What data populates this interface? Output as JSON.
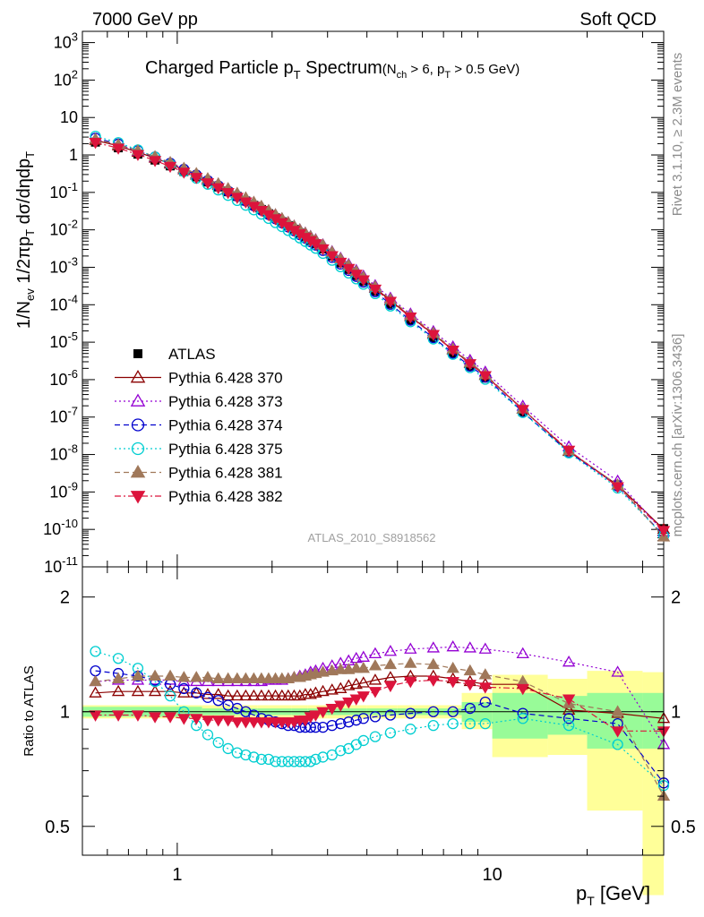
{
  "header": {
    "left": "7000 GeV pp",
    "right": "Soft QCD"
  },
  "side_labels": {
    "top": "Rivet 3.1.10, ≥ 2.3M events",
    "bottom": "mcplots.cern.ch [arXiv:1306.3436]"
  },
  "colors": {
    "ATLAS": "#000000",
    "370": "#8b0000",
    "373": "#9400d3",
    "374": "#0000cd",
    "375": "#00ced1",
    "381": "#a0785a",
    "382": "#dc143c",
    "band_green": "#98fb98",
    "band_yellow": "#ffff99"
  },
  "chart_data": [
    {
      "type": "line",
      "title": "Charged Particle p_T Spectrum",
      "title_parts": {
        "main": "Charged Particle p",
        "main_sub": "T",
        "main_tail": " Spectrum",
        "cut_1": "(N",
        "cut_1_sub": "ch",
        "cut_2": " > 6, p",
        "cut_2_sub": "T",
        "cut_3": " > 0.5 GeV)"
      },
      "xlabel": "p_T [GeV]",
      "ylabel": "1/N_ev 1/2πp_T dσ/dηdp_T",
      "x_scale": "log",
      "y_scale": "log",
      "xlim": [
        0.5,
        35
      ],
      "ylim": [
        1e-11,
        2000
      ],
      "ytick_labels": [
        "10^-11",
        "10^-10",
        "10^-9",
        "10^-8",
        "10^-7",
        "10^-6",
        "10^-5",
        "10^-4",
        "10^-3",
        "10^-2",
        "10^-1",
        "1",
        "10",
        "10^2",
        "10^3"
      ],
      "xtick_labels": [
        "1",
        "10"
      ],
      "watermark": "ATLAS_2010_S8918562",
      "x": [
        0.55,
        0.65,
        0.75,
        0.85,
        0.95,
        1.05,
        1.15,
        1.25,
        1.35,
        1.45,
        1.55,
        1.65,
        1.75,
        1.85,
        1.95,
        2.05,
        2.15,
        2.25,
        2.35,
        2.45,
        2.55,
        2.65,
        2.75,
        2.9,
        3.1,
        3.3,
        3.5,
        3.7,
        3.9,
        4.25,
        4.75,
        5.5,
        6.5,
        7.5,
        8.5,
        9.5,
        12.5,
        17.5,
        25,
        35
      ],
      "series": [
        {
          "name": "ATLAS",
          "marker": "square-filled",
          "linestyle": "none",
          "color": "#000000",
          "values": [
            2.2,
            1.55,
            1.05,
            0.73,
            0.51,
            0.36,
            0.26,
            0.19,
            0.14,
            0.104,
            0.078,
            0.059,
            0.045,
            0.035,
            0.027,
            0.021,
            0.0165,
            0.013,
            0.0103,
            0.0082,
            0.0066,
            0.0053,
            0.0043,
            0.0031,
            0.002,
            0.00131,
            0.00088,
            0.0006,
            0.00042,
            0.00023,
            0.000105,
            3.9e-05,
            1.32e-05,
            5.1e-06,
            2.25e-06,
            1.1e-06,
            1.38e-07,
            1.2e-08,
            1.55e-09,
            1.05e-10
          ]
        },
        {
          "name": "Pythia 6.428 370",
          "marker": "triangle-up-open",
          "linestyle": "solid",
          "color": "#8b0000",
          "ratio": [
            1.12,
            1.13,
            1.13,
            1.13,
            1.13,
            1.12,
            1.12,
            1.11,
            1.11,
            1.1,
            1.1,
            1.1,
            1.1,
            1.1,
            1.1,
            1.1,
            1.1,
            1.1,
            1.1,
            1.1,
            1.11,
            1.11,
            1.12,
            1.13,
            1.14,
            1.15,
            1.17,
            1.18,
            1.19,
            1.21,
            1.23,
            1.24,
            1.24,
            1.22,
            1.2,
            1.18,
            1.18,
            1.01,
            0.99,
            0.96
          ]
        },
        {
          "name": "Pythia 6.428 373",
          "marker": "triangle-up-open",
          "linestyle": "dotted",
          "color": "#9400d3",
          "ratio": [
            1.2,
            1.21,
            1.21,
            1.21,
            1.21,
            1.2,
            1.2,
            1.2,
            1.2,
            1.2,
            1.2,
            1.2,
            1.2,
            1.2,
            1.21,
            1.21,
            1.21,
            1.22,
            1.23,
            1.24,
            1.25,
            1.27,
            1.28,
            1.3,
            1.32,
            1.34,
            1.36,
            1.38,
            1.39,
            1.42,
            1.44,
            1.46,
            1.47,
            1.48,
            1.47,
            1.46,
            1.42,
            1.35,
            1.27,
            0.82
          ]
        },
        {
          "name": "Pythia 6.428 374",
          "marker": "circle-open",
          "linestyle": "dashed",
          "color": "#0000cd",
          "ratio": [
            1.28,
            1.26,
            1.24,
            1.21,
            1.18,
            1.15,
            1.12,
            1.09,
            1.07,
            1.04,
            1.02,
            1.0,
            0.98,
            0.96,
            0.95,
            0.94,
            0.93,
            0.92,
            0.92,
            0.91,
            0.91,
            0.91,
            0.91,
            0.91,
            0.92,
            0.93,
            0.94,
            0.95,
            0.96,
            0.97,
            0.98,
            0.99,
            1.0,
            1.0,
            1.02,
            1.06,
            0.99,
            0.96,
            0.93,
            0.65
          ]
        },
        {
          "name": "Pythia 6.428 375",
          "marker": "circle-open",
          "linestyle": "dotted",
          "color": "#00ced1",
          "ratio": [
            1.44,
            1.38,
            1.3,
            1.2,
            1.1,
            1.0,
            0.92,
            0.87,
            0.83,
            0.8,
            0.78,
            0.77,
            0.76,
            0.75,
            0.75,
            0.74,
            0.74,
            0.74,
            0.74,
            0.74,
            0.74,
            0.74,
            0.75,
            0.76,
            0.77,
            0.79,
            0.8,
            0.82,
            0.84,
            0.86,
            0.88,
            0.9,
            0.92,
            0.93,
            0.93,
            0.93,
            0.96,
            0.92,
            0.82,
            0.64
          ]
        },
        {
          "name": "Pythia 6.428 381",
          "marker": "triangle-up-filled",
          "linestyle": "dashed",
          "color": "#a0785a",
          "ratio": [
            1.2,
            1.22,
            1.24,
            1.24,
            1.24,
            1.23,
            1.23,
            1.23,
            1.22,
            1.22,
            1.22,
            1.22,
            1.22,
            1.22,
            1.22,
            1.22,
            1.22,
            1.22,
            1.23,
            1.23,
            1.24,
            1.25,
            1.26,
            1.27,
            1.28,
            1.29,
            1.29,
            1.3,
            1.3,
            1.32,
            1.33,
            1.34,
            1.33,
            1.3,
            1.28,
            1.25,
            1.2,
            1.05,
            1.0,
            0.6
          ]
        },
        {
          "name": "Pythia 6.428 382",
          "marker": "triangle-down-filled",
          "linestyle": "dashdot",
          "color": "#dc143c",
          "ratio": [
            0.98,
            0.98,
            0.98,
            0.97,
            0.97,
            0.96,
            0.96,
            0.95,
            0.95,
            0.95,
            0.94,
            0.94,
            0.94,
            0.94,
            0.94,
            0.94,
            0.94,
            0.94,
            0.94,
            0.95,
            0.95,
            0.97,
            0.98,
            1.0,
            1.02,
            1.04,
            1.06,
            1.08,
            1.1,
            1.13,
            1.17,
            1.2,
            1.21,
            1.2,
            1.18,
            1.16,
            1.15,
            1.08,
            0.89,
            0.89
          ]
        }
      ]
    },
    {
      "type": "line",
      "ylabel": "Ratio to ATLAS",
      "x_scale": "log",
      "y_scale": "log",
      "xlim": [
        0.5,
        35
      ],
      "ylim": [
        0.42,
        2.4
      ],
      "ytick_labels": [
        "0.5",
        "1",
        "2"
      ],
      "band_edges": [
        0.5,
        1.2,
        1.8,
        2.3,
        2.6,
        3.0,
        4.0,
        5.0,
        8.0,
        10.0,
        15.0,
        20.0,
        30.0,
        35.0
      ],
      "band_green": [
        [
          0.97,
          1.03
        ],
        [
          0.98,
          1.02
        ],
        [
          0.98,
          1.02
        ],
        [
          0.98,
          1.02
        ],
        [
          0.98,
          1.02
        ],
        [
          0.98,
          1.02
        ],
        [
          0.98,
          1.02
        ],
        [
          0.98,
          1.02
        ],
        [
          0.94,
          1.06
        ],
        [
          0.85,
          1.12
        ],
        [
          0.87,
          1.1
        ],
        [
          0.8,
          1.12
        ],
        [
          0.8,
          1.12
        ]
      ],
      "band_yellow": [
        [
          0.96,
          1.04
        ],
        [
          0.96,
          1.04
        ],
        [
          0.96,
          1.04
        ],
        [
          0.96,
          1.04
        ],
        [
          0.96,
          1.04
        ],
        [
          0.96,
          1.04
        ],
        [
          0.96,
          1.04
        ],
        [
          0.96,
          1.04
        ],
        [
          0.9,
          1.12
        ],
        [
          0.76,
          1.25
        ],
        [
          0.77,
          1.22
        ],
        [
          0.55,
          1.28
        ],
        [
          0.33,
          1.27
        ]
      ]
    }
  ]
}
